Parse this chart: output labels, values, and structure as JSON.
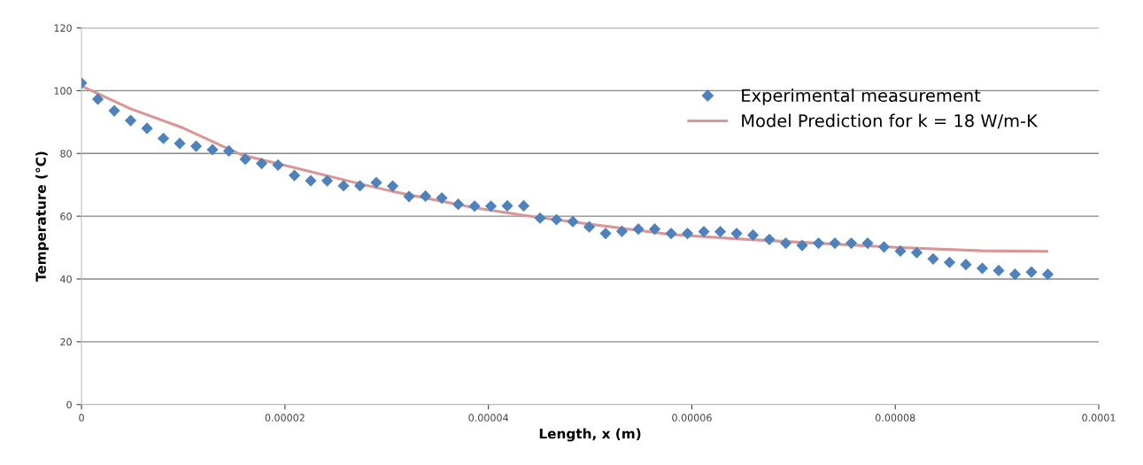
{
  "chart_data": {
    "type": "scatter",
    "xlabel": "Length, x (m)",
    "ylabel": "Temperature (°C)",
    "xlim": [
      0,
      0.0001
    ],
    "xticks": [
      0,
      {
        "value": 2e-05,
        "label": "0.00002"
      },
      {
        "value": 4e-05,
        "label": "0.00004"
      },
      {
        "value": 6e-05,
        "label": "0.00006"
      },
      {
        "value": 8e-05,
        "label": "0.00008"
      },
      0.0001
    ],
    "ylim": [
      0,
      120
    ],
    "yticks": [
      0,
      20,
      40,
      60,
      80,
      100,
      120
    ],
    "grid": "y",
    "legend": "top right",
    "series": [
      {
        "name": "Experimental measurement",
        "marker": "diamond",
        "color": "#4f81bd",
        "x": [
          0,
          1.61e-06,
          3.22e-06,
          4.83e-06,
          6.44e-06,
          8.05e-06,
          9.66e-06,
          1.127e-05,
          1.288e-05,
          1.449e-05,
          1.61e-05,
          1.771e-05,
          1.932e-05,
          2.093e-05,
          2.254e-05,
          2.415e-05,
          2.576e-05,
          2.737e-05,
          2.898e-05,
          3.059e-05,
          3.22e-05,
          3.381e-05,
          3.542e-05,
          3.703e-05,
          3.864e-05,
          4.025e-05,
          4.186e-05,
          4.347e-05,
          4.508e-05,
          4.669e-05,
          4.83e-05,
          4.991e-05,
          5.152e-05,
          5.313e-05,
          5.474e-05,
          5.635e-05,
          5.796e-05,
          5.957e-05,
          6.118e-05,
          6.279e-05,
          6.44e-05,
          6.601e-05,
          6.762e-05,
          6.923e-05,
          7.084e-05,
          7.245e-05,
          7.406e-05,
          7.567e-05,
          7.728e-05,
          7.889e-05,
          8.05e-05,
          8.211e-05,
          8.372e-05,
          8.533e-05,
          8.694e-05,
          8.855e-05,
          9.016e-05,
          9.177e-05,
          9.338e-05,
          9.499e-05
        ],
        "values": [
          102.4,
          97.3,
          93.6,
          90.5,
          88.0,
          84.8,
          83.2,
          82.3,
          81.2,
          80.8,
          78.2,
          76.8,
          76.3,
          73.0,
          71.3,
          71.3,
          69.7,
          69.7,
          70.7,
          69.6,
          66.3,
          66.4,
          65.8,
          63.8,
          63.2,
          63.2,
          63.3,
          63.3,
          59.4,
          58.9,
          58.3,
          56.6,
          54.5,
          55.2,
          55.9,
          55.9,
          54.5,
          54.5,
          55.1,
          55.1,
          54.5,
          54.0,
          52.6,
          51.4,
          50.7,
          51.4,
          51.4,
          51.4,
          51.4,
          50.2,
          48.9,
          48.4,
          46.4,
          45.3,
          44.6,
          43.4,
          42.7,
          41.5,
          42.2,
          41.5
        ]
      },
      {
        "name": "Model Prediction for k = 18 W/m-K",
        "type": "line",
        "marker": "none",
        "line_style": "solid",
        "color": "#d99694",
        "x": [
          0,
          4.84e-06,
          1e-05,
          1.57e-05,
          2.1e-05,
          2.74e-05,
          3.06e-05,
          3.86e-05,
          4.34e-05,
          4.99e-05,
          5.79e-05,
          6.44e-05,
          7.24e-05,
          8.05e-05,
          8.85e-05,
          9.49e-05
        ],
        "values": [
          101.5,
          94.2,
          88.1,
          79.6,
          75.4,
          70.3,
          67.9,
          62.7,
          60.3,
          57.5,
          54.2,
          52.8,
          51.4,
          50.0,
          49.0,
          48.8
        ]
      }
    ]
  }
}
